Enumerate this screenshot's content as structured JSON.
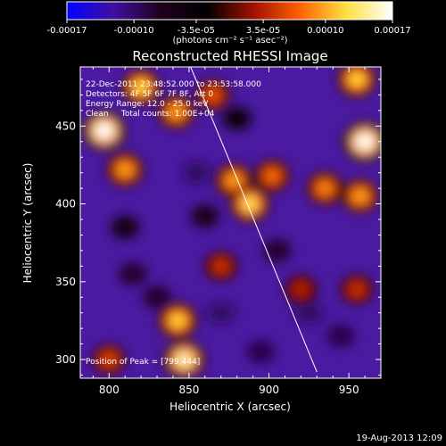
{
  "chart_data": {
    "type": "heatmap",
    "title": "Reconstructed RHESSI Image",
    "xlabel": "Heliocentric X (arcsec)",
    "ylabel": "Heliocentric Y (arcsec)",
    "xlim": [
      782,
      970
    ],
    "ylim": [
      288,
      488
    ],
    "x_ticks": [
      800,
      850,
      900,
      950
    ],
    "y_ticks": [
      300,
      350,
      400,
      450
    ],
    "colorbar": {
      "range": [
        -0.00017,
        0.00017
      ],
      "tick_values": [
        -0.00017,
        -0.0001,
        -3.5e-05,
        3.5e-05,
        0.0001,
        0.00017
      ],
      "tick_labels": [
        "-0.00017",
        "-0.00010",
        "-3.5e-05",
        "3.5e-05",
        "0.00010",
        "0.00017"
      ],
      "units_label": "(photons cm⁻² s⁻¹ asec⁻²)",
      "colors": [
        "#0000ff",
        "#4010a0",
        "#200020",
        "#000000",
        "#a01000",
        "#ff6000",
        "#ffe040",
        "#ffffff"
      ]
    },
    "annotations": {
      "time": "22-Dec-2011 23:48:52.000 to 23:53:58.000",
      "detectors": "Detectors: 4F 5F 6F 7F 8F, Att 0",
      "energy": "Energy Range: 12.0 - 25.0 keV",
      "clean": "Clean     Total counts: 1.00E+04",
      "peak": "Position of Peak = [799,444]"
    },
    "limb_line": [
      [
        851,
        488
      ],
      [
        930,
        292
      ]
    ],
    "bright_sources": [
      {
        "x": 797,
        "y": 447,
        "value": 0.00017
      },
      {
        "x": 810,
        "y": 422,
        "value": 0.0001
      },
      {
        "x": 820,
        "y": 475,
        "value": 0.00012
      },
      {
        "x": 842,
        "y": 459,
        "value": 0.0001
      },
      {
        "x": 865,
        "y": 470,
        "value": 7e-05
      },
      {
        "x": 878,
        "y": 415,
        "value": 0.0001
      },
      {
        "x": 888,
        "y": 400,
        "value": 0.00013
      },
      {
        "x": 902,
        "y": 418,
        "value": 8e-05
      },
      {
        "x": 935,
        "y": 410,
        "value": 9e-05
      },
      {
        "x": 955,
        "y": 480,
        "value": 0.00012
      },
      {
        "x": 960,
        "y": 440,
        "value": 0.00017
      },
      {
        "x": 957,
        "y": 405,
        "value": 0.0001
      },
      {
        "x": 843,
        "y": 325,
        "value": 0.00012
      },
      {
        "x": 847,
        "y": 300,
        "value": 0.00015
      },
      {
        "x": 800,
        "y": 300,
        "value": 6e-05
      },
      {
        "x": 870,
        "y": 360,
        "value": 5e-05
      },
      {
        "x": 920,
        "y": 345,
        "value": 4e-05
      },
      {
        "x": 955,
        "y": 345,
        "value": 5e-05
      }
    ],
    "dark_sources": [
      {
        "x": 855,
        "y": 420,
        "value": -0.0001
      },
      {
        "x": 810,
        "y": 385,
        "value": -6e-05
      },
      {
        "x": 830,
        "y": 340,
        "value": -8e-05
      },
      {
        "x": 870,
        "y": 330,
        "value": -0.0001
      },
      {
        "x": 905,
        "y": 370,
        "value": -8e-05
      },
      {
        "x": 860,
        "y": 392,
        "value": -7e-05
      },
      {
        "x": 925,
        "y": 330,
        "value": -0.0001
      },
      {
        "x": 945,
        "y": 315,
        "value": -9e-05
      },
      {
        "x": 895,
        "y": 305,
        "value": -9e-05
      },
      {
        "x": 880,
        "y": 455,
        "value": -5e-05
      },
      {
        "x": 815,
        "y": 355,
        "value": -8e-05
      }
    ]
  },
  "footer": {
    "timestamp": "19-Aug-2013 12:09"
  }
}
